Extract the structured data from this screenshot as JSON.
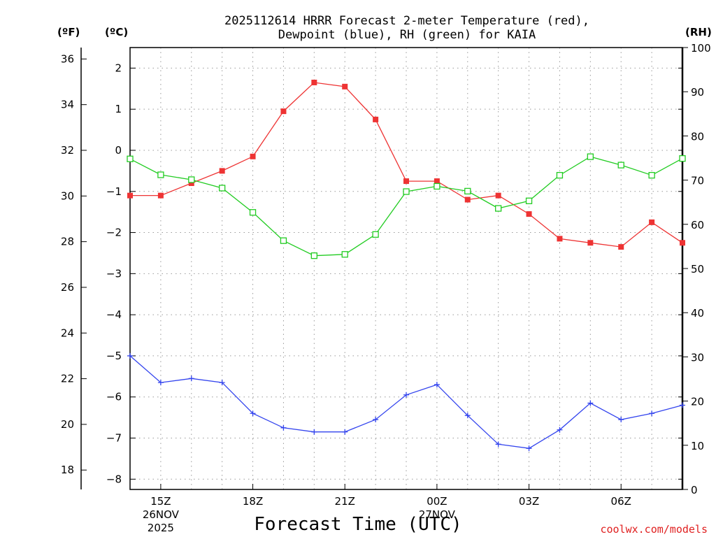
{
  "chart_data": {
    "type": "line",
    "title_line1": "2025112614 HRRR Forecast 2-meter Temperature (red),",
    "title_line2": "Dewpoint (blue), RH (green) for KAIA",
    "xlabel": "Forecast Time (UTC)",
    "units": {
      "fahrenheit": "(ºF)",
      "celsius": "(ºC)",
      "rh": "(RH)"
    },
    "credit": "coolwx.com/models",
    "xlim": [
      14,
      32
    ],
    "x": [
      14,
      15,
      16,
      17,
      18,
      19,
      20,
      21,
      22,
      23,
      24,
      25,
      26,
      27,
      28,
      29,
      30,
      31,
      32
    ],
    "x_ticks": [
      {
        "x": 15,
        "lines": [
          "15Z",
          "26NOV",
          "2025"
        ]
      },
      {
        "x": 18,
        "lines": [
          "18Z"
        ]
      },
      {
        "x": 21,
        "lines": [
          "21Z"
        ]
      },
      {
        "x": 24,
        "lines": [
          "00Z",
          "27NOV"
        ]
      },
      {
        "x": 27,
        "lines": [
          "03Z"
        ]
      },
      {
        "x": 30,
        "lines": [
          "06Z"
        ]
      }
    ],
    "ylim_celsius": [
      -8.25,
      2.5
    ],
    "y_ticks_celsius": [
      -8,
      -7,
      -6,
      -5,
      -4,
      -3,
      -2,
      -1,
      0,
      1,
      2
    ],
    "y_ticks_celsius_labels": [
      "−8",
      "−7",
      "−6",
      "−5",
      "−4",
      "−3",
      "−2",
      "−1",
      "0",
      "1",
      "2"
    ],
    "y_ticks_fahrenheit": [
      18,
      20,
      22,
      24,
      26,
      28,
      30,
      32,
      34,
      36
    ],
    "ylim_rh": [
      0,
      100
    ],
    "y_ticks_rh": [
      0,
      10,
      20,
      30,
      40,
      50,
      60,
      70,
      80,
      90,
      100
    ],
    "series": [
      {
        "name": "Temperature",
        "axis": "celsius",
        "color": "#ee3333",
        "marker": "filled-square",
        "values": [
          -1.1,
          -1.1,
          -0.8,
          -0.5,
          -0.15,
          0.95,
          1.65,
          1.55,
          0.75,
          -0.75,
          -0.75,
          -1.2,
          -1.1,
          -1.55,
          -2.15,
          -2.25,
          -2.35,
          -1.75,
          -2.25
        ]
      },
      {
        "name": "Dewpoint",
        "axis": "celsius",
        "color": "#3344ee",
        "marker": "plus",
        "values": [
          -5.0,
          -5.65,
          -5.55,
          -5.65,
          -6.4,
          -6.75,
          -6.85,
          -6.85,
          -6.55,
          -5.95,
          -5.7,
          -6.45,
          -7.15,
          -7.25,
          -6.8,
          -6.15,
          -6.55,
          -6.4,
          -6.2
        ]
      },
      {
        "name": "RH",
        "axis": "rh",
        "color": "#22cc22",
        "marker": "open-square",
        "values": [
          74.8,
          71.2,
          70.1,
          68.2,
          62.7,
          56.3,
          52.9,
          53.2,
          57.7,
          67.4,
          68.6,
          67.5,
          63.6,
          65.3,
          71.1,
          75.3,
          73.4,
          71.1,
          74.9
        ]
      }
    ]
  }
}
